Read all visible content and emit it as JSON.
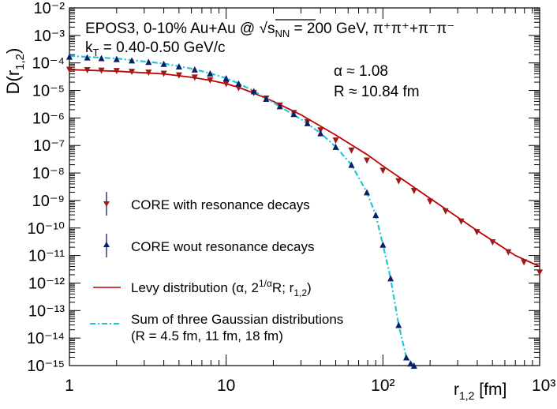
{
  "chart_data": {
    "type": "scatter",
    "xscale": "log",
    "yscale": "log",
    "xlim": [
      1,
      1000
    ],
    "ylim": [
      1e-15,
      0.01
    ],
    "ylabel": "D(r_{1,2})",
    "xlabel": "r_{1,2} [fm]",
    "header": {
      "line1_prefix": "EPOS3, 0-10% Au+Au @ ",
      "sqrt_symbol": "√",
      "sqrt_s": "s",
      "sqrt_sub": "NN",
      "line1_suffix": " = 200 GeV, ",
      "pair_species": "π⁺π⁺+π⁻π⁻",
      "kt_prefix": "k",
      "kt_sub": "T",
      "kt_suffix": " = 0.40-0.50 GeV/c"
    },
    "fit_results": {
      "alpha": "α ≈ 1.08",
      "radius": "R ≈ 10.84 fm"
    },
    "x_tick_labels": [
      "1",
      "10",
      "10²",
      "10³"
    ],
    "y_tick_labels": [
      "10⁻¹⁵",
      "10⁻¹⁴",
      "10⁻¹³",
      "10⁻¹²",
      "10⁻¹¹",
      "10⁻¹⁰",
      "10⁻⁹",
      "10⁻⁸",
      "10⁻⁷",
      "10⁻⁶",
      "10⁻⁵",
      "10⁻⁴",
      "10⁻³",
      "10⁻²"
    ],
    "legend": {
      "with_decays": "CORE with resonance decays",
      "wout_decays": "CORE wout resonance decays",
      "levy_prefix": "Levy distribution (α, 2",
      "levy_sup": "1/α",
      "levy_suffix": "R; r",
      "levy_sub": "1,2",
      "levy_close": ")",
      "gauss_line1": "Sum of three Gaussian distributions",
      "gauss_line2": "(R = 4.5 fm, 11 fm, 18 fm)"
    },
    "series": [
      {
        "name": "CORE with resonance decays",
        "marker": "triangle-down",
        "color": "#9b1b1b",
        "x": [
          1.0,
          1.3,
          1.6,
          2.0,
          2.5,
          3.2,
          4.0,
          5.0,
          6.3,
          7.9,
          10,
          12,
          15,
          18,
          22,
          27,
          33,
          40,
          50,
          63,
          79,
          100,
          126,
          158,
          200,
          251,
          316,
          398,
          501,
          631,
          794,
          1000
        ],
        "y": [
          5.6e-05,
          5.4e-05,
          5.2e-05,
          5e-05,
          4.7e-05,
          4.4e-05,
          4e-05,
          3.5e-05,
          2.9e-05,
          2.3e-05,
          1.7e-05,
          1.2e-05,
          8e-06,
          5e-06,
          2.8e-06,
          1.5e-06,
          7e-07,
          3.5e-07,
          1.5e-07,
          6.5e-08,
          2.8e-08,
          1.2e-08,
          5e-09,
          2.2e-09,
          9e-10,
          4e-10,
          1.7e-10,
          7e-11,
          3e-11,
          1.3e-11,
          5.6e-12,
          2.4e-12
        ]
      },
      {
        "name": "CORE wout resonance decays",
        "marker": "triangle-up",
        "color": "#0b1f66",
        "x": [
          1.0,
          1.3,
          1.6,
          2.0,
          2.5,
          3.2,
          4.0,
          5.0,
          6.3,
          7.9,
          10,
          12,
          15,
          18,
          22,
          27,
          33,
          40,
          50,
          63,
          79,
          90,
          100,
          112,
          126,
          141,
          150,
          158
        ],
        "y": [
          0.00017,
          0.00016,
          0.00015,
          0.00014,
          0.000125,
          0.00011,
          9.3e-05,
          7.5e-05,
          5.8e-05,
          4.2e-05,
          2.8e-05,
          1.8e-05,
          9.5e-06,
          5e-06,
          2.7e-06,
          1.4e-06,
          6.5e-07,
          2.8e-07,
          9e-08,
          2e-08,
          2e-09,
          3e-10,
          2.5e-11,
          1.5e-12,
          3e-14,
          2e-15,
          1.2e-15,
          1e-15
        ]
      },
      {
        "name": "Levy distribution",
        "type": "line",
        "color": "#c00000",
        "x": [
          1,
          2,
          4,
          6,
          8,
          10,
          12,
          15,
          20,
          30,
          50,
          80,
          100,
          200,
          400,
          700,
          1000
        ],
        "y": [
          5.7e-05,
          5e-05,
          4e-05,
          3e-05,
          2.3e-05,
          1.75e-05,
          1.3e-05,
          8e-06,
          4e-06,
          1.3e-06,
          2.4e-07,
          4.5e-08,
          1.8e-08,
          1.2e-09,
          8e-11,
          1e-11,
          4e-12
        ]
      },
      {
        "name": "Sum of three Gaussian distributions",
        "type": "line",
        "color": "#22c7d6",
        "dash": "dash-dot",
        "x": [
          1,
          2,
          4,
          6,
          8,
          10,
          12,
          15,
          20,
          30,
          40,
          50,
          63,
          79,
          90,
          100,
          112,
          126,
          141,
          158
        ],
        "y": [
          0.00018,
          0.000145,
          9.5e-05,
          6.2e-05,
          4.1e-05,
          2.8e-05,
          1.8e-05,
          9.5e-06,
          3.6e-06,
          9e-07,
          2.8e-07,
          9e-08,
          2e-08,
          2e-09,
          3e-10,
          2.5e-11,
          1.5e-12,
          3e-14,
          2e-15,
          1e-15
        ]
      }
    ]
  }
}
